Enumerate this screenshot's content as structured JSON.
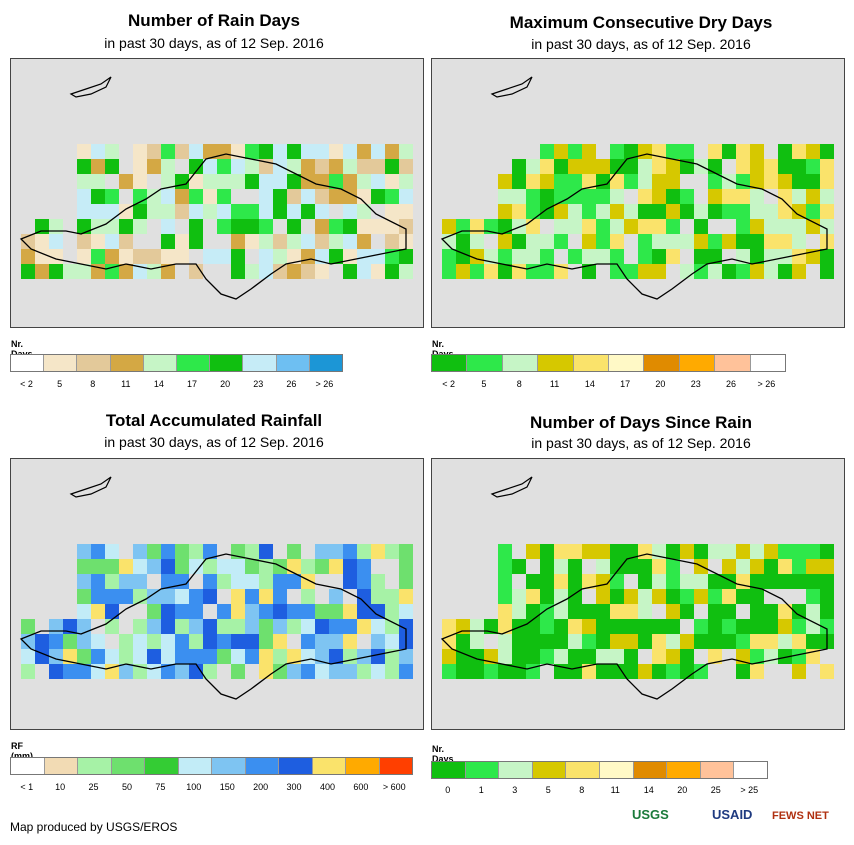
{
  "panels": [
    {
      "id": "rain-days",
      "title": "Number of Rain Days",
      "subtitle": "in past 30 days, as of 12 Sep. 2016",
      "legend_title": "Nr. Days",
      "legend_colors": [
        "#ffffff",
        "#f5e6c8",
        "#e3c99a",
        "#d4a844",
        "#c6f5c6",
        "#2ee84a",
        "#10bf10",
        "#c6ecf7",
        "#6ebff2",
        "#1c96d6"
      ],
      "legend_labels": [
        "< 2",
        "5",
        "8",
        "11",
        "14",
        "17",
        "20",
        "23",
        "26",
        "> 26"
      ]
    },
    {
      "id": "dry-days",
      "title": "Maximum Consecutive Dry Days",
      "subtitle": "in past 30 days, as of 12 Sep. 2016",
      "legend_title": "Nr. Days",
      "legend_colors": [
        "#10bf10",
        "#2ee84a",
        "#c6f5c6",
        "#d6c800",
        "#fae36b",
        "#fff9c6",
        "#e08b00",
        "#ffaa00",
        "#ffc29a",
        "#ffffff"
      ],
      "legend_labels": [
        "< 2",
        "5",
        "8",
        "11",
        "14",
        "17",
        "20",
        "23",
        "26",
        "> 26"
      ]
    },
    {
      "id": "rainfall",
      "title": "Total Accumulated Rainfall",
      "subtitle": "in past 30 days, as of 12 Sep. 2016",
      "legend_title": "RF (mm)",
      "legend_colors": [
        "#ffffff",
        "#f2dbb4",
        "#a6f2a6",
        "#6ee06e",
        "#34cc34",
        "#c2ecf7",
        "#7ec4f2",
        "#3b8ff0",
        "#1e5ee0",
        "#fae36b",
        "#ffaa00",
        "#ff3f00"
      ],
      "legend_labels": [
        "< 1",
        "10",
        "25",
        "50",
        "75",
        "100",
        "150",
        "200",
        "300",
        "400",
        "600",
        "> 600"
      ]
    },
    {
      "id": "since-rain",
      "title": "Number of Days Since Rain",
      "subtitle": "in past 30 days, as of 12 Sep. 2016",
      "legend_title": "Nr. Days",
      "legend_colors": [
        "#10bf10",
        "#2ee84a",
        "#c6f5c6",
        "#d6c800",
        "#fae36b",
        "#fff9c6",
        "#e08b00",
        "#ffaa00",
        "#ffc29a",
        "#ffffff"
      ],
      "legend_labels": [
        "0",
        "1",
        "3",
        "5",
        "8",
        "11",
        "14",
        "20",
        "25",
        "> 25"
      ]
    }
  ],
  "credit": "Map produced by USGS/EROS",
  "logos": {
    "usgs": "USGS",
    "usaid": "USAID",
    "fews": "FEWS NET"
  }
}
